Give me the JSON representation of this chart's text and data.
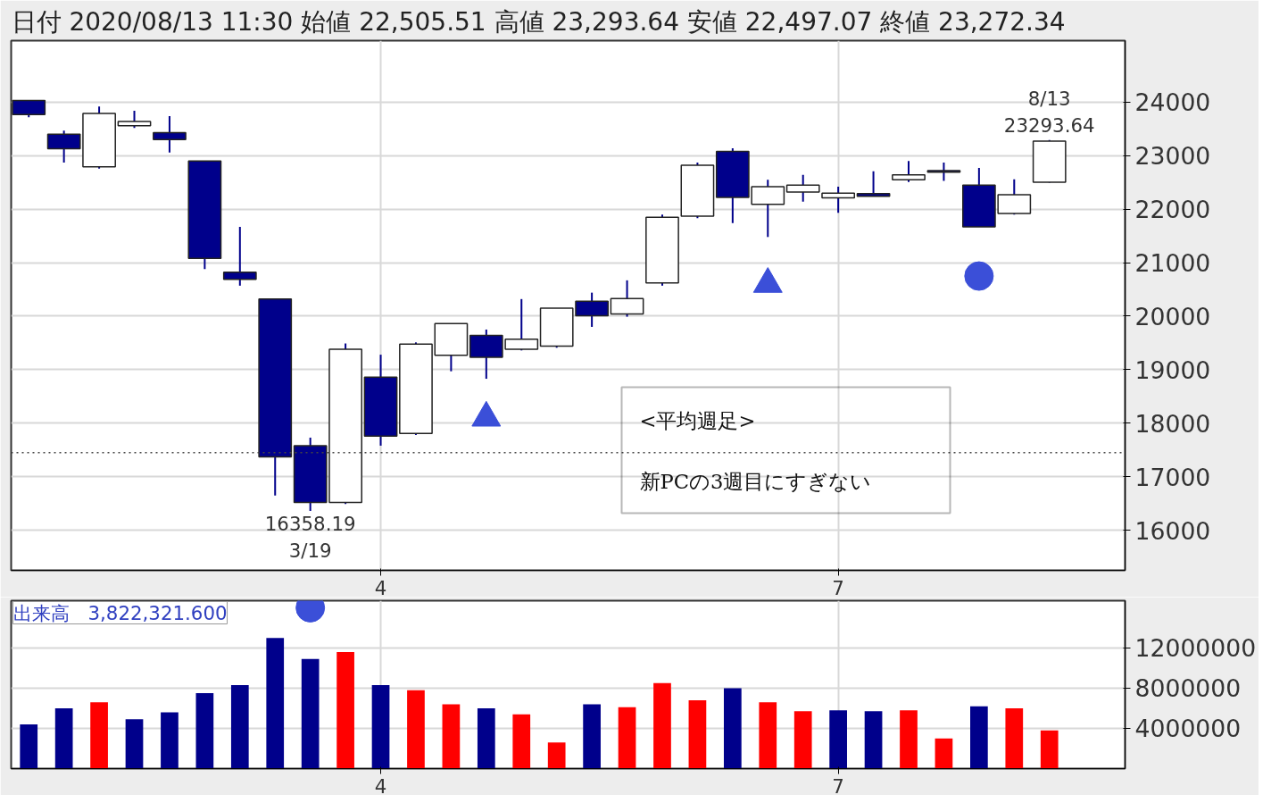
{
  "chart_data": [
    {
      "type": "candlestick",
      "title": "日付 2020/08/13 11:30 始値 22,505.51 高値 23,293.64 安値 22,497.07 終値 23,272.34",
      "categories": [
        null,
        null,
        null,
        null,
        null,
        null,
        null,
        null,
        null,
        null,
        "4",
        null,
        null,
        null,
        null,
        null,
        null,
        null,
        null,
        null,
        null,
        null,
        null,
        "7",
        null,
        null,
        null,
        null,
        null,
        null
      ],
      "ohlc": [
        [
          24030,
          24030,
          23720,
          23770
        ],
        [
          23400,
          23470,
          22870,
          23130
        ],
        [
          22790,
          23920,
          22760,
          23790
        ],
        [
          23560,
          23840,
          23520,
          23640
        ],
        [
          23430,
          23740,
          23060,
          23300
        ],
        [
          22900,
          22900,
          20880,
          21080
        ],
        [
          20820,
          21670,
          20570,
          20690
        ],
        [
          20320,
          20320,
          16650,
          17370
        ],
        [
          17580,
          17730,
          16358.19,
          16520
        ],
        [
          16520,
          19490,
          16490,
          19380
        ],
        [
          18860,
          19280,
          17580,
          17760
        ],
        [
          17810,
          19510,
          17780,
          19480
        ],
        [
          19270,
          19860,
          18970,
          19860
        ],
        [
          19640,
          19750,
          18830,
          19230
        ],
        [
          19380,
          20320,
          19360,
          19570
        ],
        [
          19440,
          20150,
          19410,
          20150
        ],
        [
          20280,
          20440,
          19800,
          20010
        ],
        [
          20040,
          20670,
          19990,
          20330
        ],
        [
          20620,
          21900,
          20570,
          21850
        ],
        [
          21870,
          22870,
          21830,
          22820
        ],
        [
          23080,
          23140,
          21740,
          22220
        ],
        [
          22090,
          22550,
          21480,
          22420
        ],
        [
          22320,
          22640,
          22140,
          22450
        ],
        [
          22210,
          22420,
          21930,
          22300
        ],
        [
          22290,
          22710,
          22240,
          22240
        ],
        [
          22550,
          22900,
          22510,
          22640
        ],
        [
          22720,
          22870,
          22530,
          22690
        ],
        [
          22450,
          22770,
          21670,
          21670
        ],
        [
          21920,
          22560,
          21900,
          22270
        ],
        [
          22505.51,
          23293.64,
          22497.07,
          23272.34
        ]
      ],
      "colors": [
        "#00008b",
        "#00008b",
        "#ffffff",
        "#ffffff",
        "#00008b",
        "#00008b",
        "#00008b",
        "#00008b",
        "#00008b",
        "#ffffff",
        "#00008b",
        "#ffffff",
        "#ffffff",
        "#00008b",
        "#ffffff",
        "#ffffff",
        "#00008b",
        "#ffffff",
        "#ffffff",
        "#ffffff",
        "#00008b",
        "#ffffff",
        "#ffffff",
        "#ffffff",
        "#00008b",
        "#ffffff",
        "#00008b",
        "#00008b",
        "#ffffff",
        "#ffffff"
      ],
      "series": [
        {
          "type": "scatter",
          "marker": "triangle",
          "color": "#3b4fd8",
          "values": [
            null,
            null,
            null,
            null,
            null,
            null,
            null,
            null,
            null,
            null,
            null,
            null,
            null,
            18100,
            null,
            null,
            null,
            null,
            null,
            null,
            null,
            20600,
            null,
            null,
            null,
            null,
            null,
            null,
            null,
            null
          ]
        },
        {
          "type": "scatter",
          "marker": "circle",
          "color": "#3b4fd8",
          "values": [
            null,
            null,
            null,
            null,
            null,
            null,
            null,
            null,
            null,
            null,
            null,
            null,
            null,
            null,
            null,
            null,
            null,
            null,
            null,
            null,
            null,
            null,
            null,
            null,
            null,
            null,
            null,
            20750,
            null,
            null
          ]
        }
      ],
      "ylim": [
        15250,
        25150
      ],
      "yticks": [
        16000,
        17000,
        18000,
        19000,
        20000,
        21000,
        22000,
        23000,
        24000
      ],
      "grid": true,
      "ref_lines": [
        {
          "axis": "y",
          "value": 17450,
          "line_style": "dotted"
        }
      ],
      "annotations": [
        {
          "text": "8/13\n23293.64",
          "y": 23293.64
        },
        {
          "text": "16358.19\n3/19",
          "y": 16358.19
        },
        "<平均週足>",
        "新PCの3週目にすぎない"
      ]
    },
    {
      "type": "bar",
      "categories": [
        null,
        null,
        null,
        null,
        null,
        null,
        null,
        null,
        null,
        null,
        "4",
        null,
        null,
        null,
        null,
        null,
        null,
        null,
        null,
        null,
        null,
        null,
        null,
        "7",
        null,
        null,
        null,
        null,
        null,
        null
      ],
      "values": [
        4400000,
        6000000,
        6600000,
        4900000,
        5600000,
        7500000,
        8300000,
        13000000,
        10900000,
        11600000,
        8300000,
        7800000,
        6400000,
        6000000,
        5400000,
        2600000,
        6400000,
        6100000,
        8500000,
        6800000,
        8000000,
        6600000,
        5700000,
        5800000,
        5700000,
        5800000,
        3000000,
        6200000,
        6000000,
        3800000
      ],
      "colors": [
        "#00008b",
        "#00008b",
        "#ff0000",
        "#00008b",
        "#00008b",
        "#00008b",
        "#00008b",
        "#00008b",
        "#00008b",
        "#ff0000",
        "#00008b",
        "#ff0000",
        "#ff0000",
        "#00008b",
        "#ff0000",
        "#ff0000",
        "#00008b",
        "#ff0000",
        "#ff0000",
        "#ff0000",
        "#00008b",
        "#ff0000",
        "#ff0000",
        "#00008b",
        "#00008b",
        "#ff0000",
        "#ff0000",
        "#00008b",
        "#ff0000",
        "#ff0000"
      ],
      "series": [
        {
          "type": "scatter",
          "marker": "circle",
          "color": "#3b4fd8",
          "values": [
            null,
            null,
            null,
            null,
            null,
            null,
            null,
            null,
            16000000,
            null,
            null,
            null,
            null,
            null,
            null,
            null,
            null,
            null,
            null,
            null,
            null,
            null,
            null,
            null,
            null,
            null,
            null,
            null,
            null,
            null
          ]
        }
      ],
      "ylim": [
        0,
        16700000
      ],
      "yticks": [
        4000000,
        8000000,
        12000000
      ],
      "grid": true,
      "annotations": [
        "出来高　3,822,321.600"
      ]
    }
  ]
}
